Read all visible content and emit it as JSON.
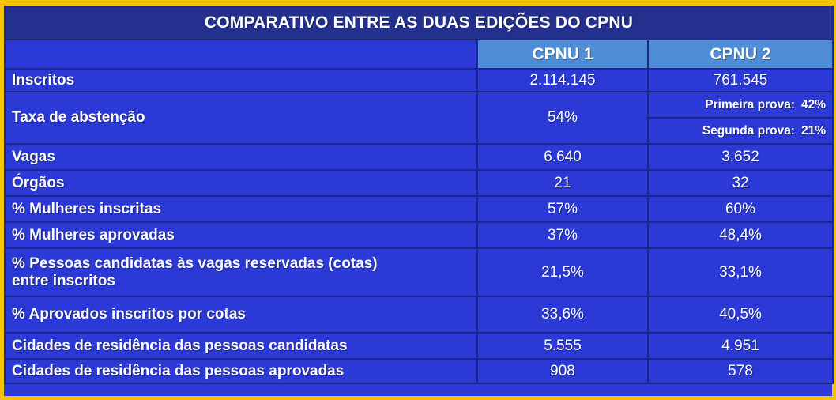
{
  "title": "COMPARATIVO ENTRE AS DUAS EDIÇÕES DO CPNU",
  "columns": [
    "CPNU 1",
    "CPNU 2"
  ],
  "colors": {
    "border": "#f5c400",
    "table_bg": "#2b3ad6",
    "title_bg": "#23308e",
    "header_bg": "#4f8ed6",
    "text": "#ffffff"
  },
  "rows": {
    "inscritos": {
      "label": "Inscritos",
      "cpnu1": "2.114.145",
      "cpnu2": "761.545"
    },
    "abstencao": {
      "label": "Taxa de abstenção",
      "cpnu1": "54%",
      "cpnu2_a_label": "Primeira prova:",
      "cpnu2_a_value": "42%",
      "cpnu2_b_label": "Segunda prova:",
      "cpnu2_b_value": "21%"
    },
    "vagas": {
      "label": "Vagas",
      "cpnu1": "6.640",
      "cpnu2": "3.652"
    },
    "orgaos": {
      "label": "Órgãos",
      "cpnu1": "21",
      "cpnu2": "32"
    },
    "mulheres_inscritas": {
      "label": "% Mulheres inscritas",
      "cpnu1": "57%",
      "cpnu2": "60%"
    },
    "mulheres_aprovadas": {
      "label": "% Mulheres aprovadas",
      "cpnu1": "37%",
      "cpnu2": "48,4%"
    },
    "cotas_inscritos": {
      "label_line1": "% Pessoas candidatas às vagas reservadas (cotas)",
      "label_line2": "entre inscritos",
      "cpnu1": "21,5%",
      "cpnu2": "33,1%"
    },
    "aprovados_cotas": {
      "label": "% Aprovados inscritos por cotas",
      "cpnu1": "33,6%",
      "cpnu2": "40,5%"
    },
    "cidades_candidatas": {
      "label": "Cidades de residência das pessoas candidatas",
      "cpnu1": "5.555",
      "cpnu2": "4.951"
    },
    "cidades_aprovadas": {
      "label": "Cidades de residência das pessoas aprovadas",
      "cpnu1": "908",
      "cpnu2": "578"
    }
  }
}
